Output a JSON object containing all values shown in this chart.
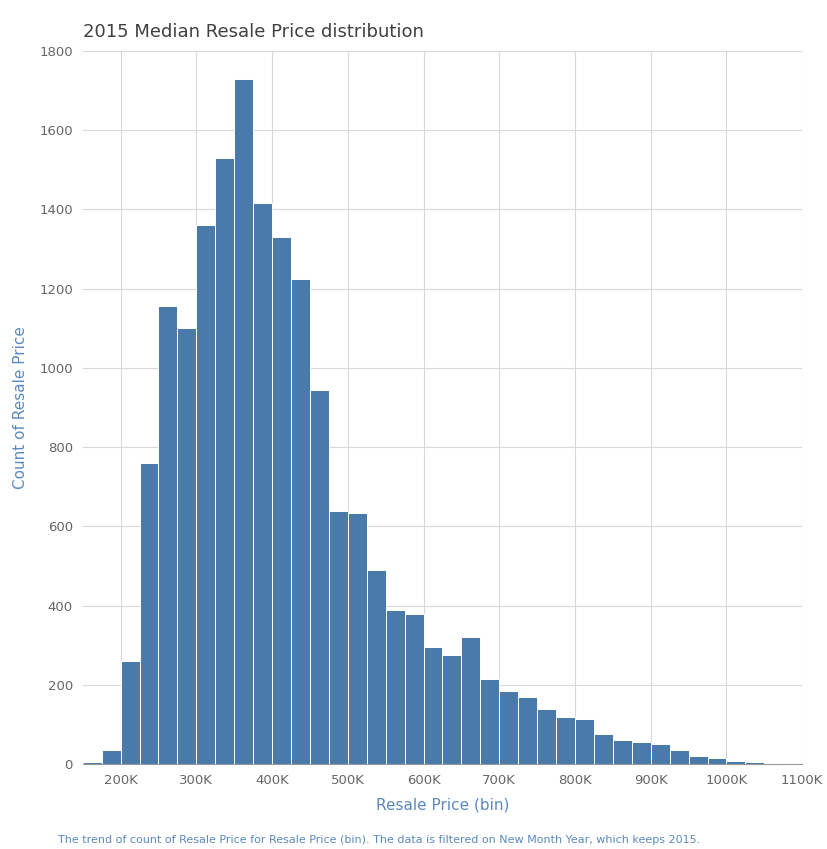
{
  "title": "2015 Median Resale Price distribution",
  "xlabel": "Resale Price (bin)",
  "ylabel": "Count of Resale Price",
  "footnote": "The trend of count of Resale Price for Resale Price (bin). The data is filtered on New Month Year, which keeps 2015.",
  "bar_color": "#4a7aaa",
  "bar_edge_color": "#ffffff",
  "background_color": "#ffffff",
  "grid_color": "#d8d8d8",
  "title_color": "#404040",
  "axis_label_color": "#5a8abf",
  "tick_label_color": "#666666",
  "footnote_color": "#5a8abf",
  "ylim": [
    0,
    1800
  ],
  "yticks": [
    0,
    200,
    400,
    600,
    800,
    1000,
    1200,
    1400,
    1600,
    1800
  ],
  "xlim_left": 150000,
  "xlim_right": 1100000,
  "bin_start": 150000,
  "bin_width": 25000,
  "counts": [
    5,
    35,
    260,
    760,
    1155,
    1100,
    1360,
    1530,
    1730,
    1415,
    1330,
    1225,
    945,
    640,
    635,
    490,
    390,
    380,
    295,
    275,
    320,
    215,
    185,
    170,
    140,
    120,
    115,
    75,
    60,
    55,
    50,
    35,
    20,
    15,
    8,
    5,
    3
  ],
  "xtick_positions": [
    200000,
    300000,
    400000,
    500000,
    600000,
    700000,
    800000,
    900000,
    1000000,
    1100000
  ],
  "xtick_labels": [
    "200K",
    "300K",
    "400K",
    "500K",
    "600K",
    "700K",
    "800K",
    "900K",
    "1000K",
    "1100K"
  ]
}
